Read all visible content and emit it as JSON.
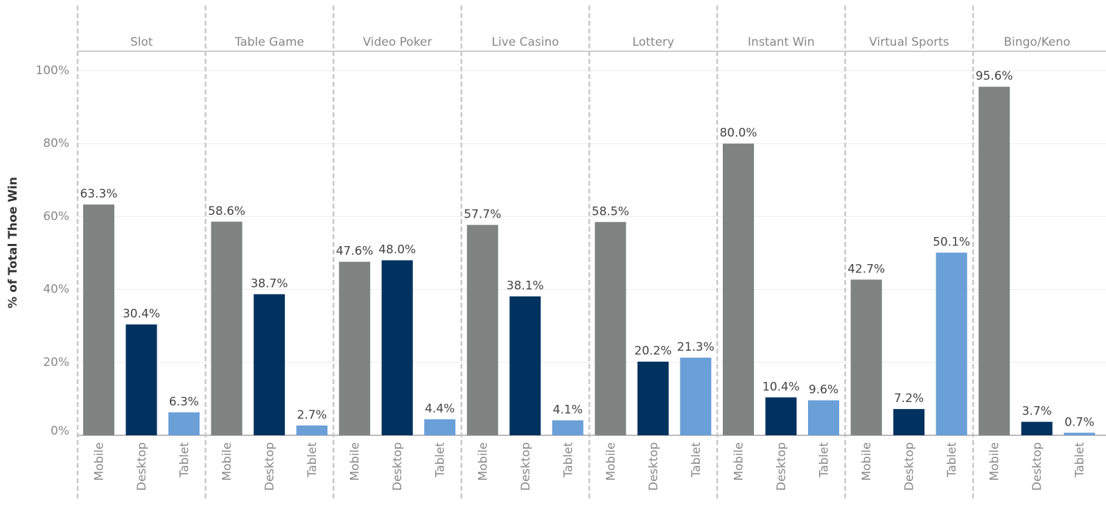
{
  "chart_data": {
    "type": "bar",
    "y_label": "% of Total Thoe Win",
    "categories": [
      "Mobile",
      "Desktop",
      "Tablet"
    ],
    "colors": [
      "#7f8382",
      "#003260",
      "#6a9fd8"
    ],
    "ylim": [
      0,
      100
    ],
    "yticks": [
      {
        "value": 0,
        "label": "0%"
      },
      {
        "value": 20,
        "label": "20%"
      },
      {
        "value": 40,
        "label": "40%"
      },
      {
        "value": 60,
        "label": "60%"
      },
      {
        "value": 80,
        "label": "80%"
      },
      {
        "value": 100,
        "label": "100%"
      }
    ],
    "grid": true,
    "panels": [
      {
        "name": "Slot",
        "values": [
          63.3,
          30.4,
          6.3
        ],
        "value_labels": [
          "63.3%",
          "30.4%",
          "6.3%"
        ]
      },
      {
        "name": "Table Game",
        "values": [
          58.6,
          38.7,
          2.7
        ],
        "value_labels": [
          "58.6%",
          "38.7%",
          "2.7%"
        ]
      },
      {
        "name": "Video Poker",
        "values": [
          47.6,
          48.0,
          4.4
        ],
        "value_labels": [
          "47.6%",
          "48.0%",
          "4.4%"
        ]
      },
      {
        "name": "Live Casino",
        "values": [
          57.7,
          38.1,
          4.1
        ],
        "value_labels": [
          "57.7%",
          "38.1%",
          "4.1%"
        ]
      },
      {
        "name": "Lottery",
        "values": [
          58.5,
          20.2,
          21.3
        ],
        "value_labels": [
          "58.5%",
          "20.2%",
          "21.3%"
        ]
      },
      {
        "name": "Instant Win",
        "values": [
          80.0,
          10.4,
          9.6
        ],
        "value_labels": [
          "80.0%",
          "10.4%",
          "9.6%"
        ]
      },
      {
        "name": "Virtual Sports",
        "values": [
          42.7,
          7.2,
          50.1
        ],
        "value_labels": [
          "42.7%",
          "7.2%",
          "50.1%"
        ]
      },
      {
        "name": "Bingo/Keno",
        "values": [
          95.6,
          3.7,
          0.7
        ],
        "value_labels": [
          "95.6%",
          "3.7%",
          "0.7%"
        ]
      }
    ]
  }
}
